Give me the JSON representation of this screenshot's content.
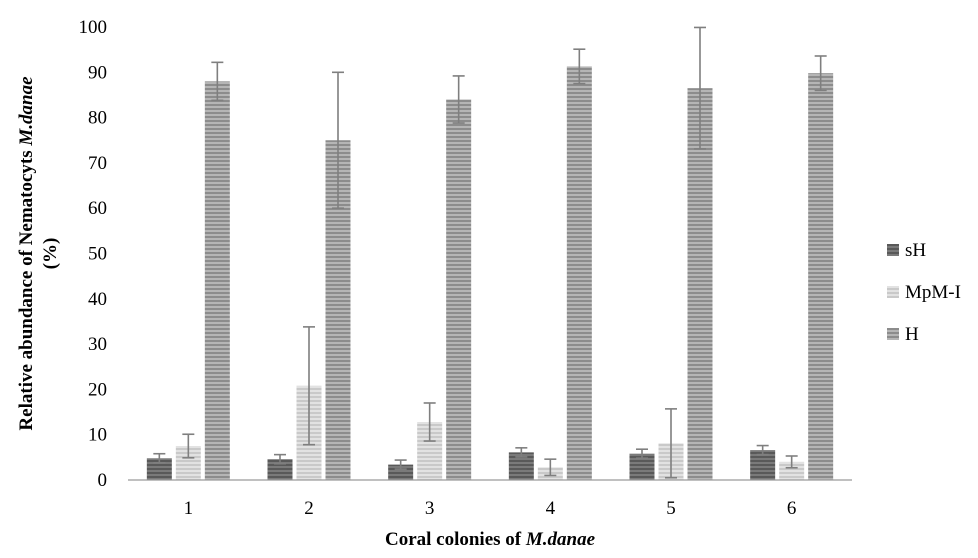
{
  "chart_data": {
    "type": "bar",
    "title": "",
    "xlabel_prefix": "Coral colonies of ",
    "xlabel_italic": "M.danae",
    "ylabel_main": "Relative abundance of Nematocyts ",
    "ylabel_italic": "M.danae",
    "ylabel_unit": "(%)",
    "categories": [
      "1",
      "2",
      "3",
      "4",
      "5",
      "6"
    ],
    "ylim": [
      0,
      100
    ],
    "yticks": [
      "0",
      "10",
      "20",
      "30",
      "40",
      "50",
      "60",
      "70",
      "80",
      "90",
      "100"
    ],
    "grid": false,
    "legend_position": "right",
    "series": [
      {
        "name": "sH",
        "color": "#595959",
        "stripe": "#7a7a7a",
        "values": [
          4.8,
          4.6,
          3.4,
          6.1,
          5.8,
          6.6
        ],
        "errors": [
          1.0,
          1.0,
          1.0,
          1.0,
          1.0,
          1.0
        ]
      },
      {
        "name": "MpM-I",
        "color": "#c9c9c9",
        "stripe": "#e2e2e2",
        "values": [
          7.5,
          20.8,
          12.8,
          2.8,
          8.1,
          4.0
        ],
        "errors": [
          2.6,
          13.0,
          4.2,
          1.8,
          7.6,
          1.3
        ]
      },
      {
        "name": "H",
        "color": "#8c8c8c",
        "stripe": "#b5b5b5",
        "values": [
          88.0,
          75.0,
          84.0,
          91.3,
          86.5,
          89.8
        ],
        "errors": [
          4.2,
          15.0,
          5.2,
          3.8,
          13.4,
          3.8
        ]
      }
    ]
  }
}
